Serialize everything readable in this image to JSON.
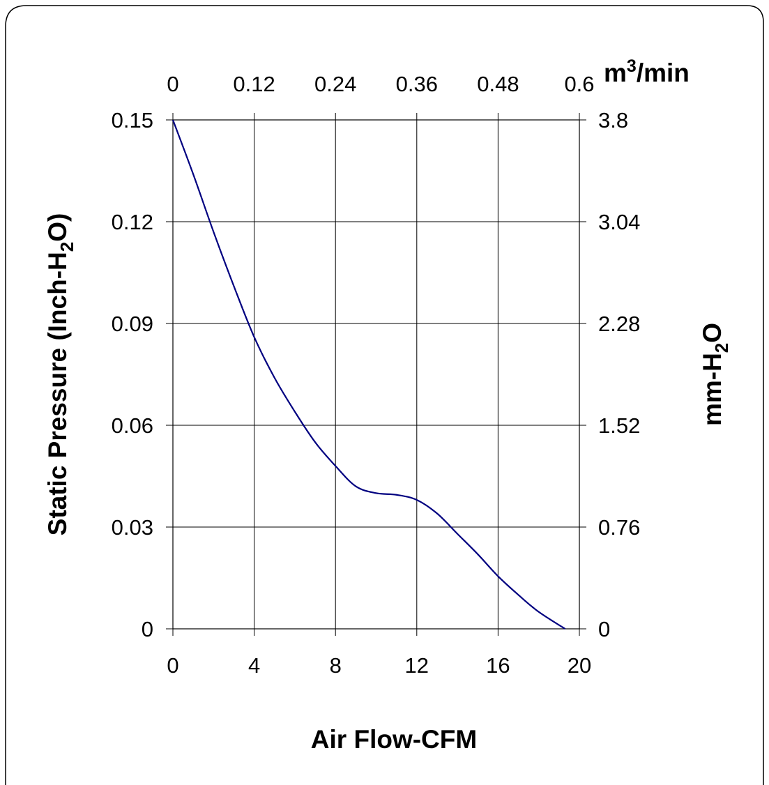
{
  "chart_data": {
    "type": "line",
    "title": "",
    "xlabel": "Air Flow-CFM",
    "xlim": [
      0,
      20
    ],
    "x_ticks": [
      "0",
      "4",
      "8",
      "12",
      "16",
      "20"
    ],
    "ylabel_left": {
      "prefix": "Static Pressure (Inch-H",
      "sub": "2",
      "suffix": "O)"
    },
    "ylim": [
      0,
      0.15
    ],
    "y_ticks_left": [
      "0",
      "0.03",
      "0.06",
      "0.09",
      "0.12",
      "0.15"
    ],
    "ylabel_right": {
      "prefix": "mm-H",
      "sub": "2",
      "suffix": "O"
    },
    "y_ticks_right": [
      "0",
      "0.76",
      "1.52",
      "2.28",
      "3.04",
      "3.8"
    ],
    "x2label": {
      "prefix": "m",
      "sup": "3",
      "suffix": "/min"
    },
    "x_ticks_top": [
      "0",
      "0.12",
      "0.24",
      "0.36",
      "0.48",
      "0.6"
    ],
    "grid": true,
    "line_color": "#000080",
    "series": [
      {
        "x": [
          0,
          1,
          2,
          3,
          4,
          5,
          6,
          7,
          8,
          9,
          10,
          11,
          12,
          13,
          14,
          15,
          16,
          17,
          18,
          19.3
        ],
        "y": [
          0.15,
          0.134,
          0.117,
          0.101,
          0.086,
          0.074,
          0.064,
          0.055,
          0.048,
          0.042,
          0.04,
          0.0395,
          0.038,
          0.034,
          0.028,
          0.022,
          0.0155,
          0.01,
          0.005,
          0.0
        ]
      }
    ]
  }
}
